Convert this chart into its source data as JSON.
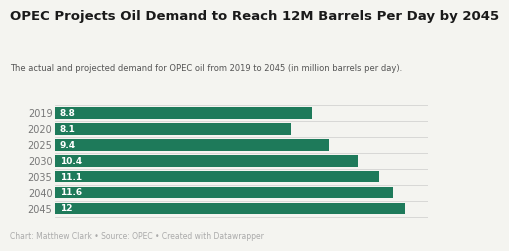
{
  "title": "OPEC Projects Oil Demand to Reach 12M Barrels Per Day by 2045",
  "subtitle": "The actual and projected demand for OPEC oil from 2019 to 2045 (in million barrels per day).",
  "footnote": "Chart: Matthew Clark • Source: OPEC • Created with Datawrapper",
  "categories": [
    "2019",
    "2020",
    "2025",
    "2030",
    "2035",
    "2040",
    "2045"
  ],
  "values": [
    8.8,
    8.1,
    9.4,
    10.4,
    11.1,
    11.6,
    12.0
  ],
  "labels": [
    "8.8",
    "8.1",
    "9.4",
    "10.4",
    "11.1",
    "11.6",
    "12"
  ],
  "bar_color": "#1e7a5a",
  "background_color": "#f4f4f0",
  "title_color": "#1a1a1a",
  "subtitle_color": "#555555",
  "footnote_color": "#aaaaaa",
  "label_color": "#ffffff",
  "tick_color": "#777777",
  "grid_color": "#cccccc",
  "xlim": [
    0,
    12.8
  ],
  "bar_height": 0.72,
  "title_fontsize": 9.5,
  "subtitle_fontsize": 6.0,
  "label_fontsize": 6.5,
  "tick_fontsize": 7.0,
  "footnote_fontsize": 5.5
}
